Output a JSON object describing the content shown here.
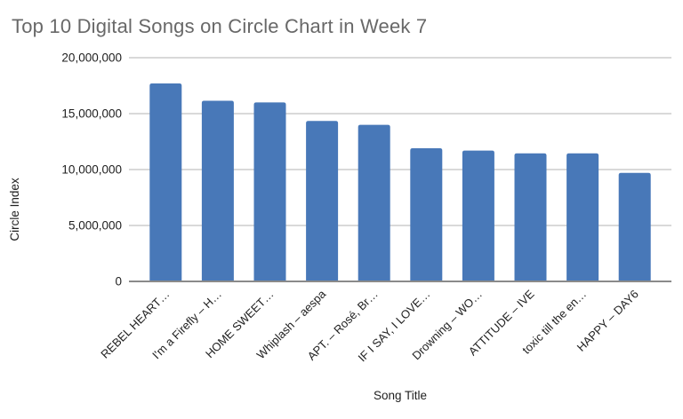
{
  "chart_data": {
    "type": "bar",
    "title": "Top 10 Digital Songs on Circle Chart in Week 7",
    "xlabel": "Song Title",
    "ylabel": "Circle Index",
    "categories": [
      "REBEL HEART…",
      "I'm a Firefly – H…",
      "HOME SWEET…",
      "Whiplash – aespa",
      "APT. – Rosé, Br…",
      "IF I SAY, I LOVE…",
      "Drowning – WO…",
      "ATTITUDE – IVE",
      "toxic till the en…",
      "HAPPY – DAY6"
    ],
    "values": [
      17700000,
      16150000,
      16000000,
      14350000,
      14000000,
      11900000,
      11700000,
      11450000,
      11450000,
      9700000
    ],
    "ylim": [
      0,
      20000000
    ],
    "yticks": [
      {
        "value": 0,
        "label": "0"
      },
      {
        "value": 5000000,
        "label": "5,000,000"
      },
      {
        "value": 10000000,
        "label": "10,000,000"
      },
      {
        "value": 15000000,
        "label": "15,000,000"
      },
      {
        "value": 20000000,
        "label": "20,000,000"
      }
    ],
    "grid": true,
    "legend": false,
    "bar_count": 10,
    "colors": {
      "bar": "#4878b8",
      "grid": "#d9d9d9",
      "axis_line": "#8a8a8a",
      "tick_text": "#212121",
      "axis_title_text": "#212121",
      "title_text": "#686868",
      "background": "#ffffff"
    }
  }
}
